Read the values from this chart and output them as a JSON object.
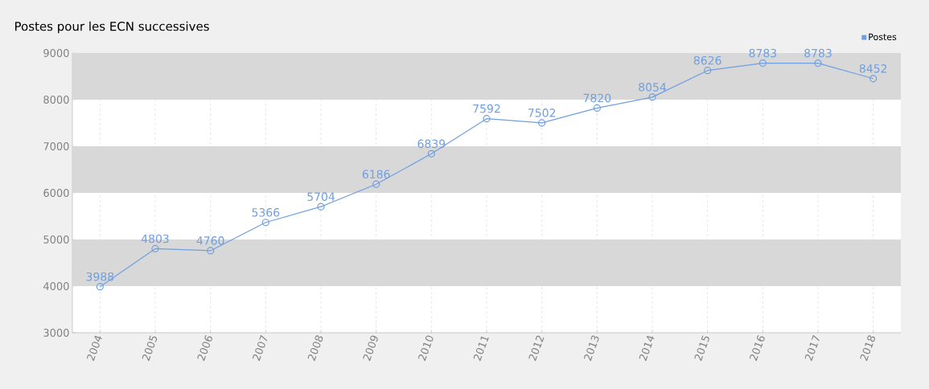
{
  "chart_data": {
    "type": "line",
    "title": "Postes pour les ECN successives",
    "categories": [
      "2004",
      "2005",
      "2006",
      "2007",
      "2008",
      "2009",
      "2010",
      "2011",
      "2012",
      "2013",
      "2014",
      "2015",
      "2016",
      "2017",
      "2018"
    ],
    "series": [
      {
        "name": "Postes",
        "color": "#6f9fe0",
        "values": [
          3988,
          4803,
          4760,
          5366,
          5704,
          6186,
          6839,
          7592,
          7502,
          7820,
          8054,
          8626,
          8783,
          8783,
          8452
        ]
      }
    ],
    "ylim": [
      3000,
      9000
    ],
    "yticks": [
      3000,
      4000,
      5000,
      6000,
      7000,
      8000,
      9000
    ],
    "bands": [
      {
        "axis": "y",
        "from": 4000,
        "to": 5000,
        "color": "#d8d8d8"
      },
      {
        "axis": "y",
        "from": 6000,
        "to": 7000,
        "color": "#d8d8d8"
      },
      {
        "axis": "y",
        "from": 8000,
        "to": 9000,
        "color": "#d8d8d8"
      }
    ],
    "grid": "x",
    "legend": "top right",
    "marker": "circle",
    "line_style": "solid",
    "data_labels": true
  }
}
